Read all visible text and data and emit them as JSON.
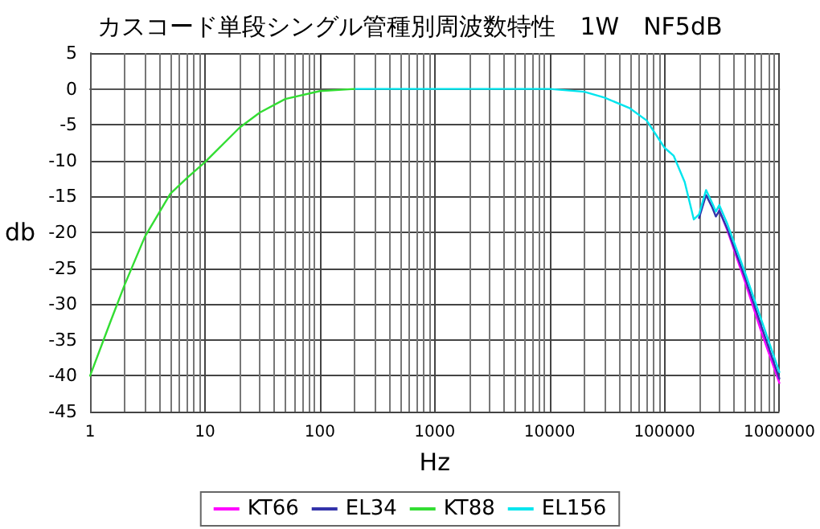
{
  "chart_data": {
    "type": "line",
    "title": "カスコード単段シングル管種別周波数特性　1W　NF5dB",
    "xlabel": "Hz",
    "ylabel": "db",
    "log": "x",
    "xlim": [
      1,
      1000000
    ],
    "xticks": [
      1,
      10,
      100,
      1000,
      10000,
      100000,
      1000000
    ],
    "ylim": [
      -45,
      5
    ],
    "yticks": [
      5,
      0,
      -5,
      -10,
      -15,
      -20,
      -25,
      -30,
      -35,
      -40,
      -45
    ],
    "grid": true,
    "legend": "bottom",
    "marker": "none",
    "line_style": "solid",
    "x": [
      1,
      1.5,
      2,
      3,
      5,
      7,
      10,
      20,
      30,
      50,
      100,
      200,
      1000,
      10000,
      20000,
      30000,
      50000,
      70000,
      100000,
      120000,
      150000,
      180000,
      200000,
      230000,
      260000,
      280000,
      300000,
      350000,
      500000,
      700000,
      1000000
    ],
    "series": [
      {
        "name": "KT66",
        "color": "#ff00ff",
        "values": [
          null,
          null,
          null,
          null,
          null,
          null,
          null,
          null,
          null,
          null,
          null,
          null,
          null,
          null,
          null,
          null,
          null,
          null,
          null,
          null,
          null,
          null,
          null,
          null,
          null,
          null,
          -16.9,
          -19.6,
          -26.8,
          -34,
          -41
        ]
      },
      {
        "name": "EL34",
        "color": "#3333aa",
        "values": [
          null,
          null,
          null,
          null,
          null,
          null,
          null,
          null,
          null,
          null,
          null,
          null,
          null,
          null,
          null,
          null,
          null,
          null,
          null,
          null,
          null,
          null,
          -18,
          -14.8,
          -16.5,
          -17.8,
          -17,
          -19.4,
          -26.2,
          -33.2,
          -40.4
        ]
      },
      {
        "name": "KT88",
        "color": "#33dd33",
        "values": [
          -40,
          -32.5,
          -27.3,
          -20.6,
          -14.6,
          -12.4,
          -10.2,
          -5.4,
          -3.3,
          -1.4,
          -0.3,
          0,
          null,
          null,
          null,
          null,
          null,
          null,
          null,
          null,
          null,
          null,
          null,
          null,
          null,
          null,
          null,
          null,
          null,
          null,
          null
        ]
      },
      {
        "name": "EL156",
        "color": "#00e5ee",
        "values": [
          null,
          null,
          null,
          null,
          null,
          null,
          null,
          null,
          null,
          null,
          null,
          0,
          0,
          0,
          -0.4,
          -1.2,
          -2.7,
          -4.4,
          -8.2,
          -9.3,
          -13,
          -18.2,
          -17.5,
          -14.1,
          -15.9,
          -17.1,
          -16.2,
          -18.7,
          -25.5,
          -32.3,
          -39.5
        ]
      }
    ]
  }
}
